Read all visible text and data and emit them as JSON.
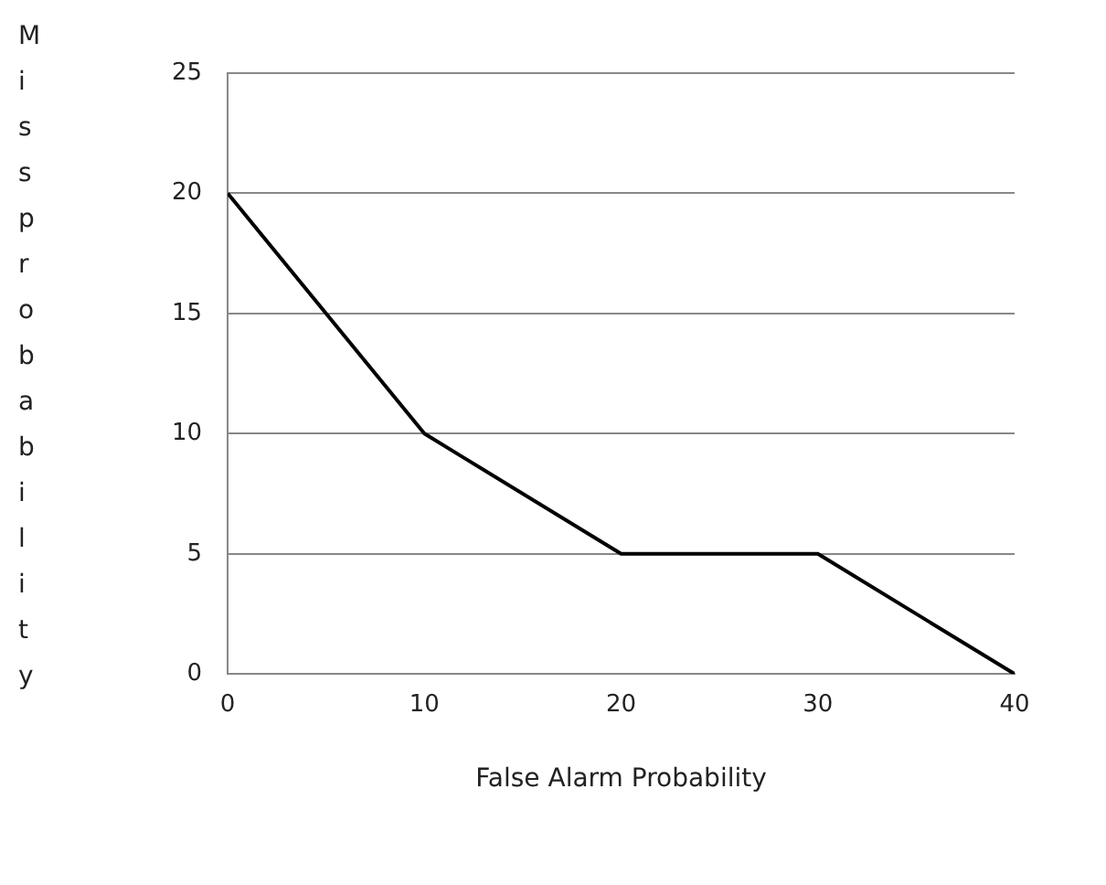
{
  "chart_data": {
    "type": "line",
    "xlabel": "False Alarm Probability",
    "ylabel": "Miss probability",
    "x": [
      0,
      10,
      20,
      30,
      40
    ],
    "series": [
      {
        "color": "#000000",
        "values": [
          20,
          10,
          5,
          5,
          0
        ]
      }
    ],
    "xlim": [
      0,
      40
    ],
    "xticks": [
      0,
      10,
      20,
      30,
      40
    ],
    "ylim": [
      0,
      25
    ],
    "yticks": [
      0,
      5,
      10,
      15,
      20,
      25
    ],
    "grid": "y",
    "legend": false,
    "marker": "none",
    "line_style": "solid"
  }
}
